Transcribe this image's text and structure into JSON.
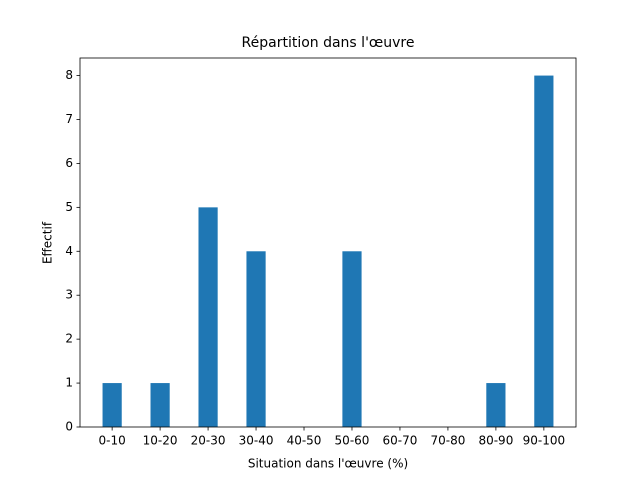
{
  "chart_data": {
    "type": "bar",
    "title": "Répartition dans l'œuvre",
    "x_label": "Situation dans l'œuvre (%)",
    "y_label": "Effectif",
    "categories": [
      "0-10",
      "10-20",
      "20-30",
      "30-40",
      "40-50",
      "50-60",
      "60-70",
      "70-80",
      "80-90",
      "90-100"
    ],
    "values": [
      1,
      1,
      5,
      4,
      0,
      4,
      0,
      0,
      1,
      8
    ],
    "color": "#1f77b4",
    "ylim": [
      0,
      8.4
    ],
    "yticks": [
      0,
      1,
      2,
      3,
      4,
      5,
      6,
      7,
      8
    ],
    "grid": false
  }
}
